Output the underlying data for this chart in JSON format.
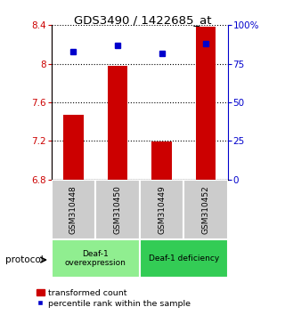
{
  "title": "GDS3490 / 1422685_at",
  "samples": [
    "GSM310448",
    "GSM310450",
    "GSM310449",
    "GSM310452"
  ],
  "bar_values": [
    7.47,
    7.98,
    7.19,
    8.38
  ],
  "percentile_values": [
    83,
    87,
    82,
    88
  ],
  "bar_color": "#cc0000",
  "percentile_color": "#0000cc",
  "ylim_left": [
    6.8,
    8.4
  ],
  "ylim_right": [
    0,
    100
  ],
  "yticks_left": [
    6.8,
    7.2,
    7.6,
    8.0,
    8.4
  ],
  "yticks_right": [
    0,
    25,
    50,
    75,
    100
  ],
  "ytick_labels_left": [
    "6.8",
    "7.2",
    "7.6",
    "8",
    "8.4"
  ],
  "ytick_labels_right": [
    "0",
    "25",
    "50",
    "75",
    "100%"
  ],
  "groups": [
    {
      "label": "Deaf-1\noverexpression",
      "indices": [
        0,
        1
      ],
      "color": "#90EE90"
    },
    {
      "label": "Deaf-1 deficiency",
      "indices": [
        2,
        3
      ],
      "color": "#33cc55"
    }
  ],
  "protocol_label": "protocol",
  "bar_baseline": 6.8,
  "sample_box_color": "#cccccc",
  "group1_color": "#90EE90",
  "group2_color": "#33cc55"
}
